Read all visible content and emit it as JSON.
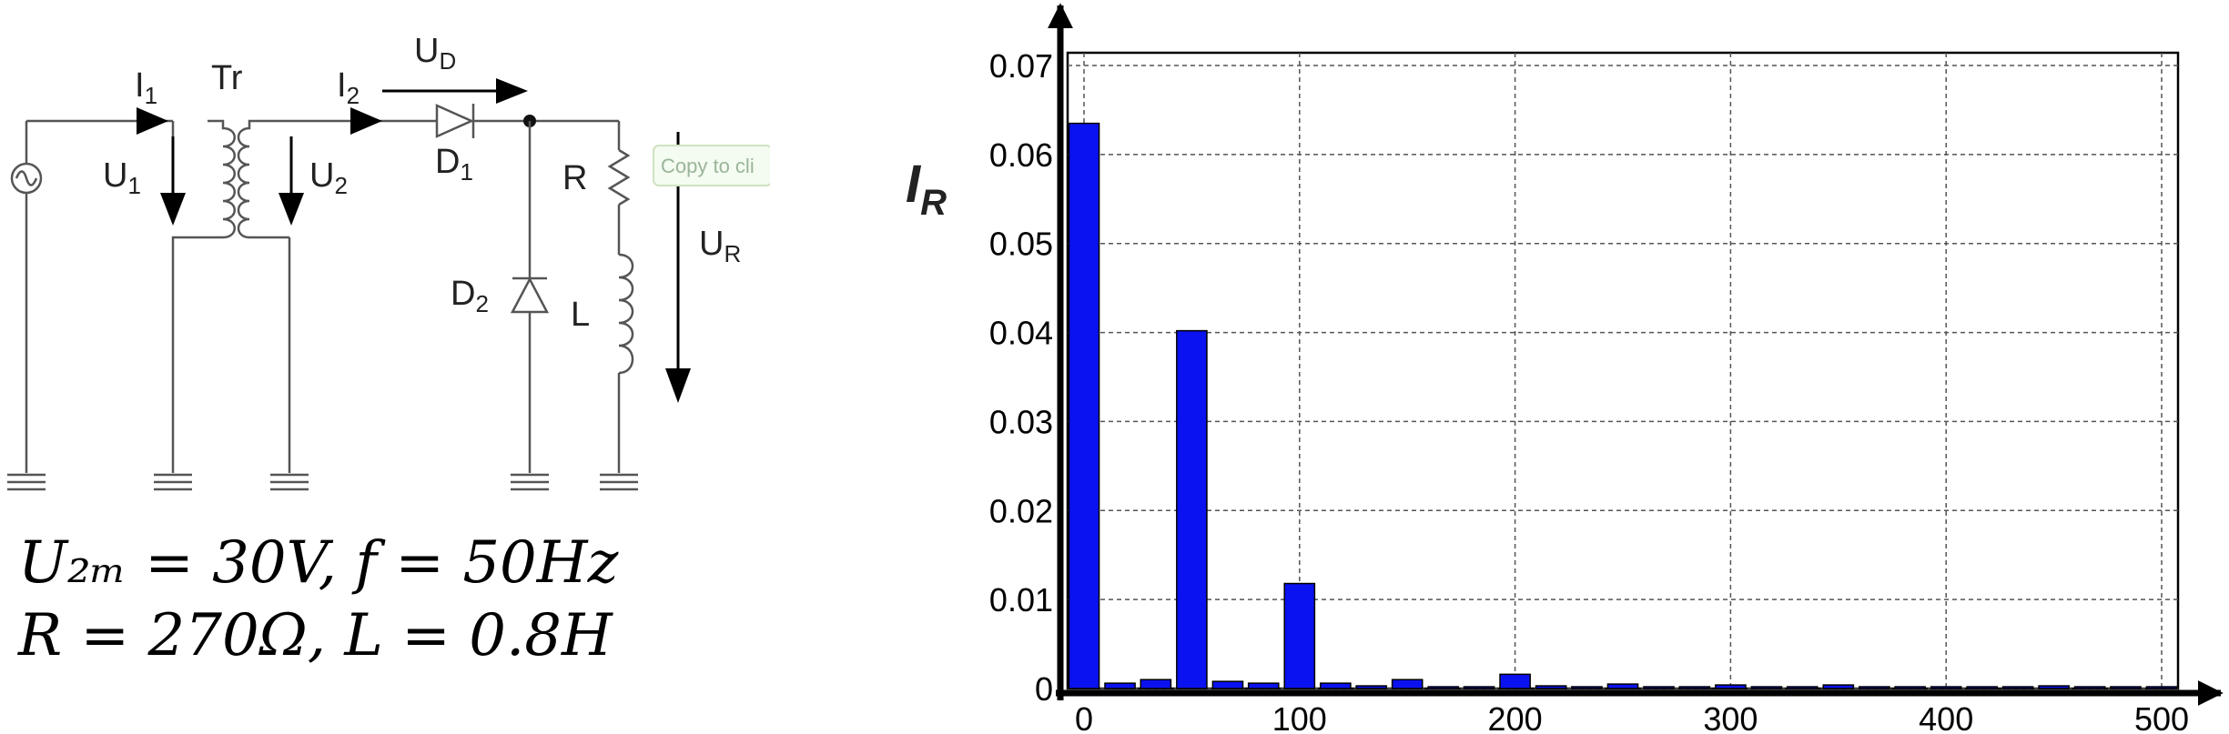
{
  "circuit": {
    "transformer_label": "Tr",
    "currents": [
      {
        "name": "I",
        "sub": "1"
      },
      {
        "name": "I",
        "sub": "2"
      }
    ],
    "voltages": [
      {
        "name": "U",
        "sub": "1"
      },
      {
        "name": "U",
        "sub": "2"
      },
      {
        "name": "U",
        "sub": "D"
      },
      {
        "name": "U",
        "sub": "R"
      }
    ],
    "components": {
      "diode1": {
        "name": "D",
        "sub": "1"
      },
      "diode2": {
        "name": "D",
        "sub": "2"
      },
      "resistor": "R",
      "inductor": "L"
    },
    "copy_tooltip": "Copy to cli"
  },
  "parameters": {
    "line1": "U₂ₘ = 30V, f = 50Hz",
    "line2": "R = 270Ω, L = 0.8H"
  },
  "colors": {
    "bar": "#0a12f0",
    "axis": "#000000",
    "grid": "#555555"
  },
  "chart_data": {
    "type": "bar",
    "ylabel": "I",
    "ylabel_sub": "R",
    "xlabel": "",
    "title": "",
    "xlim": [
      0,
      500
    ],
    "ylim": [
      0,
      0.07
    ],
    "grid": true,
    "x_ticks": [
      0,
      100,
      200,
      300,
      400,
      500
    ],
    "y_ticks": [
      0,
      0.01,
      0.02,
      0.03,
      0.04,
      0.05,
      0.06,
      0.07
    ],
    "y_tick_labels": [
      "0",
      "0.01",
      "0.02",
      "0.03",
      "0.04",
      "0.05",
      "0.06",
      "0.07"
    ],
    "bar_width": 14,
    "x": [
      0,
      16.7,
      33.3,
      50,
      66.7,
      83.3,
      100,
      116.7,
      133.3,
      150,
      166.7,
      183.3,
      200,
      216.7,
      233.3,
      250,
      266.7,
      283.3,
      300,
      316.7,
      333.3,
      350,
      366.7,
      383.3,
      400,
      416.7,
      433.3,
      450,
      466.7,
      483.3,
      500
    ],
    "values": [
      0.0635,
      0.0006,
      0.001,
      0.0402,
      0.0008,
      0.0006,
      0.0118,
      0.0006,
      0.0003,
      0.001,
      0.0002,
      0.0002,
      0.0016,
      0.0003,
      0.0002,
      0.0005,
      0.0002,
      0.0002,
      0.0004,
      0.0002,
      0.0002,
      0.0004,
      0.0002,
      0.0002,
      0.0002,
      0.0002,
      0.0002,
      0.0003,
      0.0002,
      0.0002,
      0.0002
    ]
  }
}
